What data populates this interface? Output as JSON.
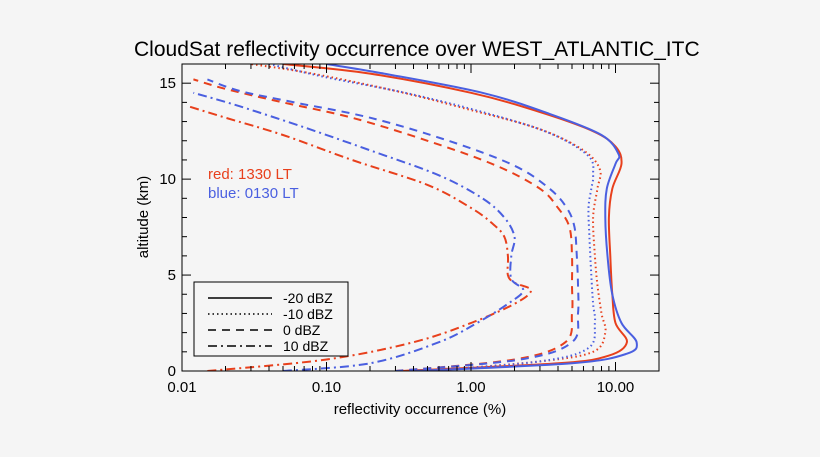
{
  "chart_data": {
    "type": "line",
    "title": "CloudSat reflectivity occurrence over WEST_ATLANTIC_ITC",
    "xlabel": "reflectivity occurrence (%)",
    "ylabel": "altitude (km)",
    "x_scale": "log",
    "xlim": [
      0.01,
      20
    ],
    "ylim": [
      0,
      16
    ],
    "x_ticks": [
      0.01,
      0.1,
      1,
      10
    ],
    "x_tick_labels": [
      "0.01",
      "0.10",
      "1.00",
      "10.00"
    ],
    "y_ticks": [
      0,
      5,
      10,
      15
    ],
    "y_tick_labels": [
      "0",
      "5",
      "10",
      "15"
    ],
    "annotations": [
      {
        "text": "red: 1330 LT",
        "color": "#e8401c"
      },
      {
        "text": "blue: 0130 LT",
        "color": "#4a5fe0"
      }
    ],
    "colors": {
      "red": "#e8401c",
      "blue": "#4a5fe0"
    },
    "legend": {
      "placement": "bottom-left",
      "entries": [
        {
          "label": "-20 dBZ",
          "style": "solid"
        },
        {
          "label": "-10 dBZ",
          "style": "dotted"
        },
        {
          "label": "0 dBZ",
          "style": "dashed"
        },
        {
          "label": "10 dBZ",
          "style": "dashdot"
        }
      ]
    },
    "series": [
      {
        "color": "red",
        "style": "solid",
        "points": [
          [
            0.32,
            0
          ],
          [
            4,
            0.4
          ],
          [
            9,
            0.8
          ],
          [
            12,
            1.5
          ],
          [
            10,
            2.5
          ],
          [
            9.5,
            4
          ],
          [
            9.2,
            6
          ],
          [
            9,
            8
          ],
          [
            9.5,
            9.5
          ],
          [
            11,
            10.8
          ],
          [
            10,
            11.7
          ],
          [
            7,
            12.5
          ],
          [
            3,
            13.5
          ],
          [
            1,
            14.5
          ],
          [
            0.2,
            15.5
          ],
          [
            0.05,
            16
          ]
        ]
      },
      {
        "color": "blue",
        "style": "solid",
        "points": [
          [
            0.4,
            0
          ],
          [
            5,
            0.4
          ],
          [
            12,
            0.9
          ],
          [
            14,
            1.5
          ],
          [
            11,
            2.5
          ],
          [
            9.5,
            4
          ],
          [
            8.8,
            6
          ],
          [
            8.5,
            8
          ],
          [
            8.7,
            9.5
          ],
          [
            10,
            10.8
          ],
          [
            10.5,
            11.3
          ],
          [
            8,
            12.3
          ],
          [
            3.5,
            13.4
          ],
          [
            1.2,
            14.5
          ],
          [
            0.25,
            15.5
          ],
          [
            0.1,
            16
          ]
        ]
      },
      {
        "color": "red",
        "style": "dotted",
        "points": [
          [
            0.5,
            0
          ],
          [
            3,
            0.5
          ],
          [
            7,
            1
          ],
          [
            8.5,
            2
          ],
          [
            8,
            3
          ],
          [
            7.5,
            4.5
          ],
          [
            7.2,
            6
          ],
          [
            7,
            8
          ],
          [
            7.5,
            9.5
          ],
          [
            7.8,
            10.5
          ],
          [
            6,
            11.5
          ],
          [
            3,
            12.6
          ],
          [
            1,
            13.6
          ],
          [
            0.3,
            14.6
          ],
          [
            0.08,
            15.5
          ],
          [
            0.03,
            16
          ]
        ]
      },
      {
        "color": "blue",
        "style": "dotted",
        "points": [
          [
            0.5,
            0
          ],
          [
            3,
            0.5
          ],
          [
            6.5,
            1.2
          ],
          [
            7.2,
            2.5
          ],
          [
            7,
            3.5
          ],
          [
            6.8,
            5
          ],
          [
            6.6,
            7
          ],
          [
            6.5,
            8.5
          ],
          [
            6.8,
            9.5
          ],
          [
            7,
            10.2
          ],
          [
            6.5,
            11.2
          ],
          [
            3.5,
            12.4
          ],
          [
            1.2,
            13.5
          ],
          [
            0.35,
            14.5
          ],
          [
            0.1,
            15.3
          ],
          [
            0.04,
            16
          ]
        ]
      },
      {
        "color": "red",
        "style": "dashed",
        "points": [
          [
            0.3,
            0
          ],
          [
            2,
            0.6
          ],
          [
            4.5,
            1.5
          ],
          [
            5,
            3
          ],
          [
            5,
            4.5
          ],
          [
            5,
            6
          ],
          [
            4.8,
            7.5
          ],
          [
            4,
            8.5
          ],
          [
            3,
            9.5
          ],
          [
            1.5,
            10.7
          ],
          [
            0.5,
            12
          ],
          [
            0.15,
            13.2
          ],
          [
            0.05,
            14
          ],
          [
            0.02,
            14.7
          ],
          [
            0.012,
            15.2
          ]
        ]
      },
      {
        "color": "blue",
        "style": "dashed",
        "points": [
          [
            0.3,
            0
          ],
          [
            2.2,
            0.6
          ],
          [
            5,
            1.5
          ],
          [
            5.5,
            3
          ],
          [
            5.5,
            4.5
          ],
          [
            5.4,
            6
          ],
          [
            5.2,
            7.5
          ],
          [
            4.6,
            8.5
          ],
          [
            3.5,
            9.5
          ],
          [
            2,
            10.7
          ],
          [
            0.7,
            12
          ],
          [
            0.2,
            13.2
          ],
          [
            0.06,
            14
          ],
          [
            0.025,
            14.6
          ],
          [
            0.015,
            15.2
          ]
        ]
      },
      {
        "color": "red",
        "style": "dashdot",
        "points": [
          [
            0.015,
            0
          ],
          [
            0.1,
            0.6
          ],
          [
            0.4,
            1.5
          ],
          [
            1,
            2.5
          ],
          [
            2,
            3.5
          ],
          [
            2.6,
            4.2
          ],
          [
            2,
            4.6
          ],
          [
            1.8,
            5
          ],
          [
            1.8,
            6
          ],
          [
            1.7,
            7
          ],
          [
            1.4,
            7.7
          ],
          [
            1,
            8.5
          ],
          [
            0.5,
            9.7
          ],
          [
            0.15,
            11
          ],
          [
            0.05,
            12.3
          ],
          [
            0.02,
            13.2
          ],
          [
            0.011,
            13.8
          ]
        ]
      },
      {
        "color": "blue",
        "style": "dashdot",
        "points": [
          [
            0.05,
            0
          ],
          [
            0.2,
            0.4
          ],
          [
            0.6,
            1.5
          ],
          [
            1.1,
            2.5
          ],
          [
            1.8,
            3.5
          ],
          [
            2.3,
            4.2
          ],
          [
            1.9,
            4.8
          ],
          [
            1.9,
            6
          ],
          [
            2,
            7
          ],
          [
            1.7,
            8
          ],
          [
            1.2,
            9
          ],
          [
            0.6,
            10.2
          ],
          [
            0.2,
            11.5
          ],
          [
            0.07,
            12.7
          ],
          [
            0.025,
            13.8
          ],
          [
            0.012,
            14.5
          ]
        ]
      }
    ]
  }
}
